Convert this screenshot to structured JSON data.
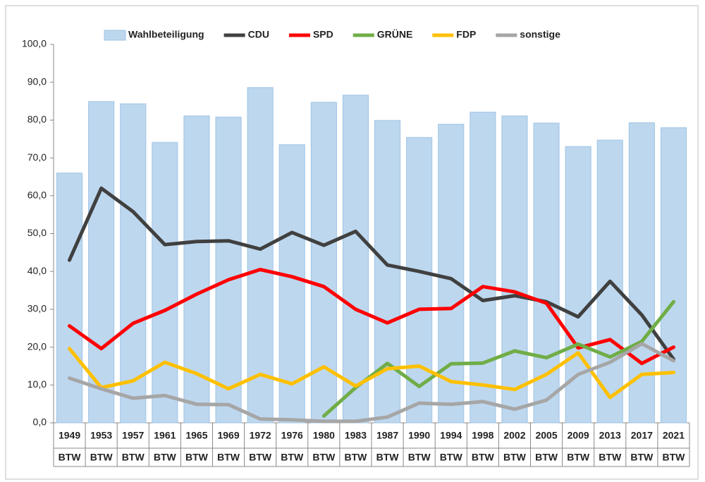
{
  "chart_data": {
    "type": "bar",
    "categories": [
      "1949",
      "1953",
      "1957",
      "1961",
      "1965",
      "1969",
      "1972",
      "1976",
      "1980",
      "1983",
      "1987",
      "1990",
      "1994",
      "1998",
      "2002",
      "2005",
      "2009",
      "2013",
      "2017",
      "2021"
    ],
    "sublabels": [
      "BTW",
      "BTW",
      "BTW",
      "BTW",
      "BTW",
      "BTW",
      "BTW",
      "BTW",
      "BTW",
      "BTW",
      "BTW",
      "BTW",
      "BTW",
      "BTW",
      "BTW",
      "BTW",
      "BTW",
      "BTW",
      "BTW",
      "BTW"
    ],
    "ylim": [
      0,
      100
    ],
    "yticks": [
      {
        "value": 0,
        "label": "0,0"
      },
      {
        "value": 10,
        "label": "10,0"
      },
      {
        "value": 20,
        "label": "20,0"
      },
      {
        "value": 30,
        "label": "30,0"
      },
      {
        "value": 40,
        "label": "40,0"
      },
      {
        "value": 50,
        "label": "50,0"
      },
      {
        "value": 60,
        "label": "60,0"
      },
      {
        "value": 70,
        "label": "70,0"
      },
      {
        "value": 80,
        "label": "80,0"
      },
      {
        "value": 90,
        "label": "90,0"
      },
      {
        "value": 100,
        "label": "100,0"
      }
    ],
    "grid": false,
    "legend": "top",
    "series": [
      {
        "name": "Wahlbeteiligung",
        "type": "bar",
        "color": "#bdd7ee",
        "values": [
          66.0,
          84.9,
          84.3,
          74.1,
          81.1,
          80.8,
          88.6,
          73.5,
          84.7,
          86.6,
          79.9,
          75.4,
          78.9,
          82.1,
          81.1,
          79.2,
          73.0,
          74.7,
          79.3,
          78.0
        ]
      },
      {
        "name": "CDU",
        "type": "line",
        "color": "#404040",
        "values": [
          43.0,
          62.0,
          55.8,
          47.1,
          47.9,
          48.1,
          45.9,
          50.3,
          46.9,
          50.6,
          41.7,
          40.0,
          38.1,
          32.3,
          33.6,
          32.0,
          28.0,
          37.4,
          28.5,
          16.8
        ]
      },
      {
        "name": "SPD",
        "type": "line",
        "color": "#ff0000",
        "values": [
          25.6,
          19.6,
          26.3,
          29.7,
          34.0,
          37.8,
          40.5,
          38.6,
          36.0,
          30.0,
          26.4,
          30.0,
          30.2,
          36.0,
          34.6,
          31.6,
          19.8,
          22.0,
          15.7,
          20.0
        ]
      },
      {
        "name": "GRÜNE",
        "type": "line",
        "color": "#70ad47",
        "values": [
          null,
          null,
          null,
          null,
          null,
          null,
          null,
          null,
          1.8,
          9.3,
          15.7,
          9.6,
          15.6,
          15.8,
          19.0,
          17.2,
          20.8,
          17.4,
          21.5,
          32.0
        ]
      },
      {
        "name": "FDP",
        "type": "line",
        "color": "#ffc000",
        "values": [
          19.6,
          9.3,
          11.1,
          16.0,
          13.0,
          9.0,
          12.8,
          10.3,
          14.8,
          9.7,
          14.3,
          15.0,
          10.9,
          10.0,
          8.8,
          12.8,
          18.5,
          6.7,
          12.8,
          13.3
        ]
      },
      {
        "name": "sonstige",
        "type": "line",
        "color": "#a6a6a6",
        "values": [
          11.8,
          9.0,
          6.5,
          7.2,
          4.9,
          4.8,
          1.0,
          0.8,
          0.4,
          0.4,
          1.5,
          5.2,
          4.9,
          5.6,
          3.6,
          6.0,
          12.8,
          16.0,
          20.9,
          16.4
        ]
      }
    ]
  }
}
